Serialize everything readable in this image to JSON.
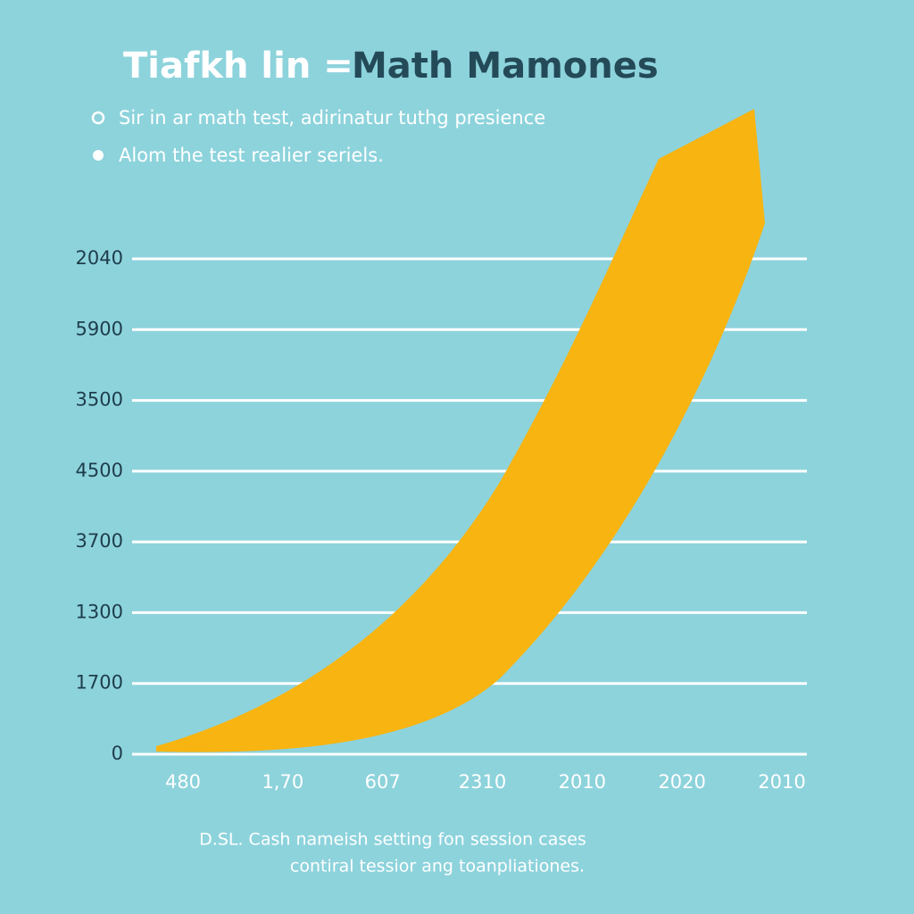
{
  "header": {
    "title_light": "Tiafkh lin =",
    "title_dark": "Math Mamones"
  },
  "notes": [
    "Sir in ar math test, adirinatur tuthg presience",
    "Alom the test realier seriels."
  ],
  "y_axis_labels": [
    "2040",
    "5900",
    "3500",
    "4500",
    "3700",
    "1300",
    "1700",
    "0"
  ],
  "x_axis_labels": [
    "480",
    "1,70",
    "607",
    "2310",
    "2010",
    "2020",
    "2010"
  ],
  "caption": [
    "D.SL. Cash nameish setting fon session cases",
    "contiral tessior ang toanpliationes."
  ]
}
